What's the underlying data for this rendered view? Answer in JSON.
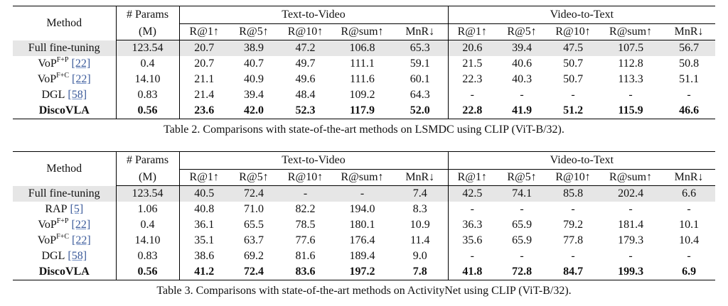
{
  "tables": [
    {
      "header": {
        "method": "Method",
        "params": "# Params",
        "params_unit": "(M)",
        "groups": [
          {
            "title": "Text-to-Video",
            "metrics": [
              "R@1↑",
              "R@5↑",
              "R@10↑",
              "R@sum↑",
              "MnR↓"
            ]
          },
          {
            "title": "Video-to-Text",
            "metrics": [
              "R@1↑",
              "R@5↑",
              "R@10↑",
              "R@sum↑",
              "MnR↓"
            ]
          }
        ]
      },
      "rows": [
        {
          "method": {
            "name": "Full fine-tuning"
          },
          "params": "123.54",
          "values": [
            "20.7",
            "38.9",
            "47.2",
            "106.8",
            "65.3",
            "20.6",
            "39.4",
            "47.5",
            "107.5",
            "56.7"
          ]
        },
        {
          "method": {
            "name": "VoP",
            "sup": "F+P",
            "cite": "[22]"
          },
          "params": "0.4",
          "values": [
            "20.7",
            "40.7",
            "49.7",
            "111.1",
            "59.1",
            "21.5",
            "40.6",
            "50.7",
            "112.8",
            "50.8"
          ]
        },
        {
          "method": {
            "name": "VoP",
            "sup": "F+C",
            "cite": "[22]"
          },
          "params": "14.10",
          "values": [
            "21.1",
            "40.9",
            "49.6",
            "111.6",
            "60.1",
            "22.3",
            "40.3",
            "50.7",
            "113.3",
            "51.1"
          ]
        },
        {
          "method": {
            "name": "DGL",
            "cite": "[58]"
          },
          "params": "0.83",
          "values": [
            "21.4",
            "39.4",
            "48.4",
            "109.2",
            "64.3",
            "-",
            "-",
            "-",
            "-",
            "-"
          ]
        },
        {
          "method": {
            "name": "DiscoVLA"
          },
          "params": "0.56",
          "values": [
            "23.6",
            "42.0",
            "52.3",
            "117.9",
            "52.0",
            "22.8",
            "41.9",
            "51.2",
            "115.9",
            "46.6"
          ]
        }
      ],
      "caption": "Table 2. Comparisons with state-of-the-art methods on LSMDC using CLIP (ViT-B/32)."
    },
    {
      "header": {
        "method": "Method",
        "params": "# Params",
        "params_unit": "(M)",
        "groups": [
          {
            "title": "Text-to-Video",
            "metrics": [
              "R@1↑",
              "R@5↑",
              "R@10↑",
              "R@sum↑",
              "MnR↓"
            ]
          },
          {
            "title": "Video-to-Text",
            "metrics": [
              "R@1↑",
              "R@5↑",
              "R@10↑",
              "R@sum↑",
              "MnR↓"
            ]
          }
        ]
      },
      "rows": [
        {
          "method": {
            "name": "Full fine-tuning"
          },
          "params": "123.54",
          "values": [
            "40.5",
            "72.4",
            "-",
            "-",
            "7.4",
            "42.5",
            "74.1",
            "85.8",
            "202.4",
            "6.6"
          ]
        },
        {
          "method": {
            "name": "RAP",
            "cite": "[5]"
          },
          "params": "1.06",
          "values": [
            "40.8",
            "71.0",
            "82.2",
            "194.0",
            "8.3",
            "-",
            "-",
            "-",
            "-",
            "-"
          ]
        },
        {
          "method": {
            "name": "VoP",
            "sup": "F+P",
            "cite": "[22]"
          },
          "params": "0.4",
          "values": [
            "36.1",
            "65.5",
            "78.5",
            "180.1",
            "10.9",
            "36.3",
            "65.9",
            "79.2",
            "181.4",
            "10.1"
          ]
        },
        {
          "method": {
            "name": "VoP",
            "sup": "F+C",
            "cite": "[22]"
          },
          "params": "14.10",
          "values": [
            "35.1",
            "63.7",
            "77.6",
            "176.4",
            "11.4",
            "35.6",
            "65.9",
            "77.8",
            "179.3",
            "10.4"
          ]
        },
        {
          "method": {
            "name": "DGL",
            "cite": "[58]"
          },
          "params": "0.83",
          "values": [
            "38.6",
            "69.2",
            "81.6",
            "189.4",
            "9.0",
            "-",
            "-",
            "-",
            "-",
            "-"
          ]
        },
        {
          "method": {
            "name": "DiscoVLA"
          },
          "params": "0.56",
          "values": [
            "41.2",
            "72.4",
            "83.6",
            "197.2",
            "7.8",
            "41.8",
            "72.8",
            "84.7",
            "199.3",
            "6.9"
          ]
        }
      ],
      "caption": "Table 3. Comparisons with state-of-the-art methods on ActivityNet using CLIP (ViT-B/32)."
    }
  ]
}
